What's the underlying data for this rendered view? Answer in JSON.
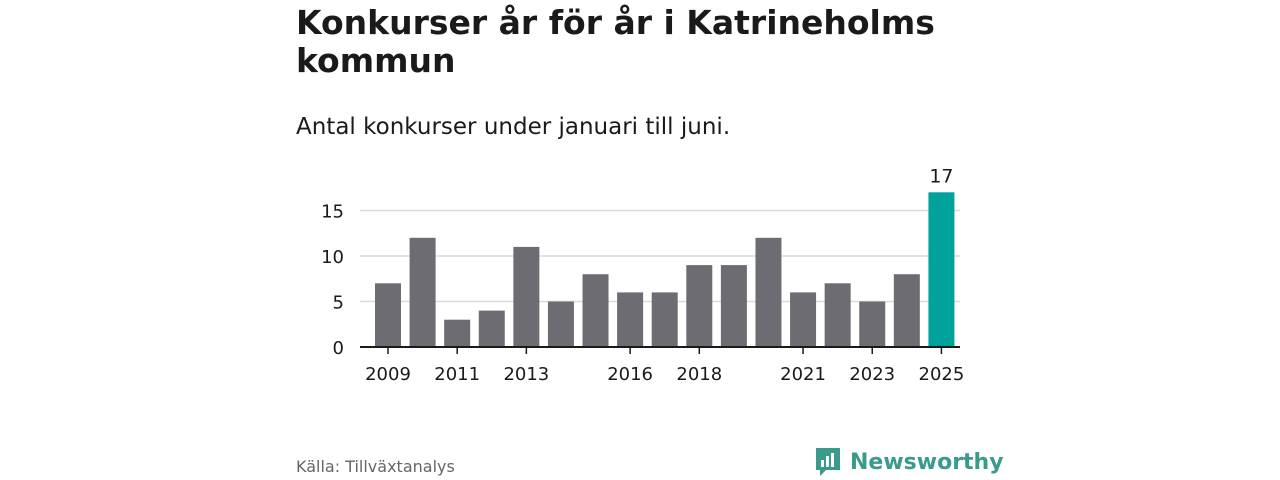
{
  "header": {
    "title": "Konkurser år för år i Katrineholms kommun",
    "subtitle": "Antal konkurser under januari till juni."
  },
  "footer": {
    "source": "Källa: Tillväxtanalys",
    "brand": "Newsworthy",
    "brand_icon": "bar-chart-logo-icon"
  },
  "colors": {
    "bar": "#6d6c72",
    "highlight": "#00a39b",
    "grid": "#d9d9d9",
    "axis": "#1a1a1a",
    "brand": "#3a9a8c"
  },
  "chart_data": {
    "type": "bar",
    "categories": [
      "2009",
      "2010",
      "2011",
      "2012",
      "2013",
      "2014",
      "2015",
      "2016",
      "2017",
      "2018",
      "2019",
      "2020",
      "2021",
      "2022",
      "2023",
      "2024",
      "2025"
    ],
    "values": [
      7,
      12,
      3,
      4,
      11,
      5,
      8,
      6,
      6,
      9,
      9,
      12,
      6,
      7,
      5,
      8,
      17
    ],
    "x_tick_labels": [
      "2009",
      "2011",
      "2013",
      "2016",
      "2018",
      "2021",
      "2023",
      "2025"
    ],
    "y_ticks": [
      0,
      5,
      10,
      15
    ],
    "ylim": [
      0,
      17
    ],
    "grid": true,
    "highlight_category": "2025",
    "data_labels": [
      {
        "category": "2025",
        "value": 17
      }
    ]
  }
}
